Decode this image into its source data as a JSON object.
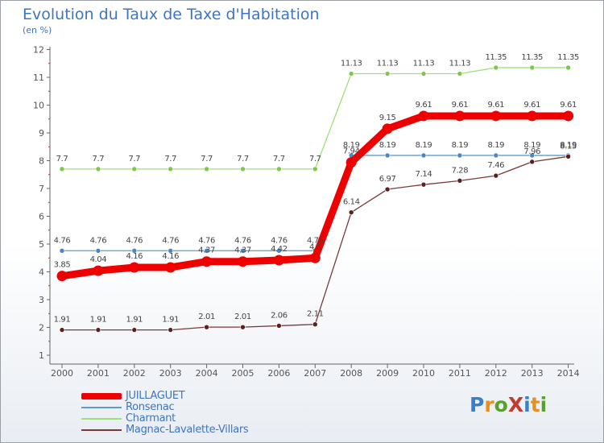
{
  "header": {
    "title": "Evolution du Taux de Taxe d'Habitation",
    "subtitle": "(en %)"
  },
  "logo": {
    "text": "ProXiti",
    "colors": [
      "#3a7fc9",
      "#e8901f",
      "#5aa02c",
      "#c53a2d",
      "#3a7fc9",
      "#e8901f",
      "#5aa02c"
    ]
  },
  "colors": {
    "axis": "#666666",
    "label": "#555555"
  },
  "chart_data": {
    "type": "line",
    "title": "Evolution du Taux de Taxe d'Habitation",
    "ylabel": "(en %)",
    "xlabel": "",
    "x": [
      "2000",
      "2001",
      "2002",
      "2003",
      "2004",
      "2005",
      "2006",
      "2007",
      "2008",
      "2009",
      "2010",
      "2011",
      "2012",
      "2013",
      "2014"
    ],
    "yticks": [
      "1",
      "2",
      "3",
      "4",
      "5",
      "6",
      "7",
      "8",
      "9",
      "10",
      "11",
      "12"
    ],
    "ylim": [
      1,
      12
    ],
    "grid": false,
    "legend_position": "bottom-left",
    "series": [
      {
        "name": "JUILLAGUET",
        "color": "#ee0000",
        "highlight": true,
        "values": [
          3.85,
          4.04,
          4.16,
          4.16,
          4.37,
          4.37,
          4.42,
          4.5,
          7.94,
          9.15,
          9.61,
          9.61,
          9.61,
          9.61,
          9.61
        ],
        "labels": [
          "3.85",
          "4.04",
          "4.16",
          "4.16",
          "4.37",
          "4.37",
          "4.42",
          "4.5",
          "7.94",
          "9.15",
          "9.61",
          "9.61",
          "9.61",
          "9.61",
          "9.61"
        ]
      },
      {
        "name": "Ronsenac",
        "color": "#5b9bd0",
        "marker": "#4a86c6",
        "values": [
          4.76,
          4.76,
          4.76,
          4.76,
          4.76,
          4.76,
          4.76,
          4.76,
          8.19,
          8.19,
          8.19,
          8.19,
          8.19,
          8.19,
          8.19
        ],
        "labels": [
          "4.76",
          "4.76",
          "4.76",
          "4.76",
          "4.76",
          "4.76",
          "4.76",
          "4.76",
          "8.19",
          "8.19",
          "8.19",
          "8.19",
          "8.19",
          "8.19",
          "8.19"
        ]
      },
      {
        "name": "Charmant",
        "color": "#9ee07a",
        "marker": "#7cc84a",
        "values": [
          7.7,
          7.7,
          7.7,
          7.7,
          7.7,
          7.7,
          7.7,
          7.7,
          11.13,
          11.13,
          11.13,
          11.13,
          11.35,
          11.35,
          11.35
        ],
        "labels": [
          "7.7",
          "7.7",
          "7.7",
          "7.7",
          "7.7",
          "7.7",
          "7.7",
          "7.7",
          "11.13",
          "11.13",
          "11.13",
          "11.13",
          "11.35",
          "11.35",
          "11.35"
        ]
      },
      {
        "name": "Magnac-Lavalette-Villars",
        "color": "#7a3a3a",
        "marker": "#5a2020",
        "values": [
          1.91,
          1.91,
          1.91,
          1.91,
          2.01,
          2.01,
          2.06,
          2.11,
          6.14,
          6.97,
          7.14,
          7.28,
          7.46,
          7.96,
          8.15
        ],
        "labels": [
          "1.91",
          "1.91",
          "1.91",
          "1.91",
          "2.01",
          "2.01",
          "2.06",
          "2.11",
          "6.14",
          "6.97",
          "7.14",
          "7.28",
          "7.46",
          "7.96",
          "8.15"
        ]
      }
    ]
  }
}
